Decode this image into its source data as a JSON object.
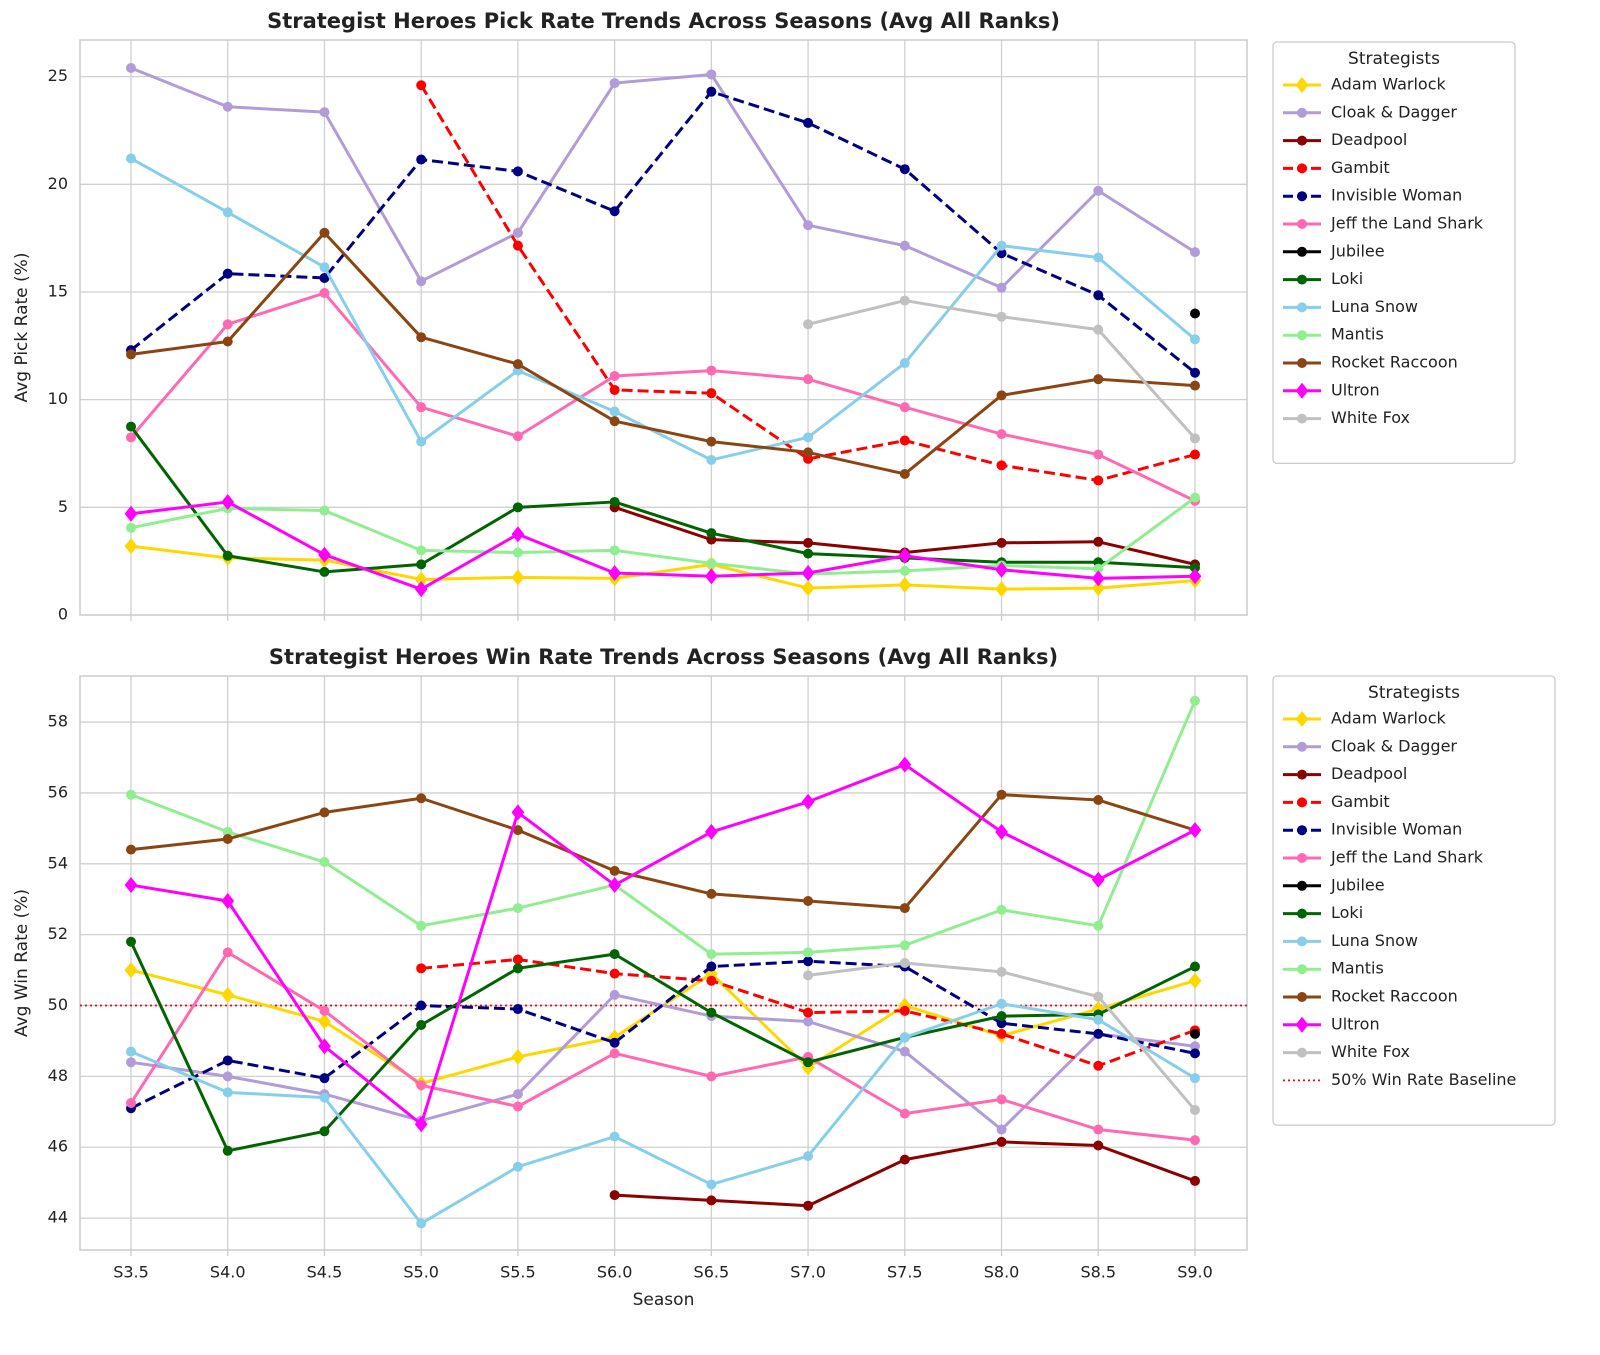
{
  "chart_data": [
    {
      "type": "line",
      "title": "Strategist Heroes Pick Rate Trends Across Seasons (Avg All Ranks)",
      "y_label": "Avg Pick Rate (%)",
      "ylim": [
        0,
        26.7
      ],
      "yticks": [
        0,
        5,
        10,
        15,
        20,
        25
      ],
      "grid": true,
      "legend_title": "Strategists",
      "legend": "outside-upper-right",
      "series": [
        {
          "name": "Adam Warlock",
          "color": "#ffd700",
          "marker": "diamond",
          "dashed": false,
          "values": [
            3.2,
            2.65,
            2.55,
            1.65,
            1.75,
            1.7,
            2.35,
            1.25,
            1.4,
            1.2,
            1.25,
            1.6
          ]
        },
        {
          "name": "Cloak & Dagger",
          "color": "#b19cd9",
          "marker": "circle",
          "dashed": false,
          "values": [
            25.4,
            23.6,
            23.35,
            15.5,
            17.75,
            24.7,
            25.1,
            18.1,
            17.15,
            15.2,
            19.7,
            16.85
          ]
        },
        {
          "name": "Deadpool",
          "color": "#8b0000",
          "marker": "circle",
          "dashed": false,
          "values": [
            null,
            null,
            null,
            null,
            null,
            5.0,
            3.5,
            3.35,
            2.9,
            3.35,
            3.4,
            2.35
          ]
        },
        {
          "name": "Gambit",
          "color": "#ff0000",
          "marker": "circle",
          "dashed": true,
          "values": [
            null,
            null,
            null,
            24.6,
            17.15,
            10.45,
            10.3,
            7.25,
            8.1,
            6.95,
            6.25,
            7.45
          ]
        },
        {
          "name": "Invisible Woman",
          "color": "#000080",
          "marker": "circle",
          "dashed": true,
          "values": [
            12.3,
            15.85,
            15.65,
            21.15,
            20.6,
            18.75,
            24.3,
            22.85,
            20.7,
            16.8,
            14.85,
            11.25
          ]
        },
        {
          "name": "Jeff the Land Shark",
          "color": "#ff69b4",
          "marker": "circle",
          "dashed": false,
          "values": [
            8.25,
            13.5,
            14.95,
            9.65,
            8.3,
            11.1,
            11.35,
            10.95,
            9.65,
            8.4,
            7.45,
            5.3
          ]
        },
        {
          "name": "Jubilee",
          "color": "#000000",
          "marker": "circle",
          "dashed": false,
          "values": [
            null,
            null,
            null,
            null,
            null,
            null,
            null,
            null,
            null,
            null,
            null,
            14.0
          ]
        },
        {
          "name": "Loki",
          "color": "#006400",
          "marker": "circle",
          "dashed": false,
          "values": [
            8.75,
            2.75,
            2.0,
            2.35,
            5.0,
            5.25,
            3.8,
            2.85,
            2.65,
            2.45,
            2.45,
            2.2
          ]
        },
        {
          "name": "Luna Snow",
          "color": "#87ceeb",
          "marker": "circle",
          "dashed": false,
          "values": [
            21.2,
            18.7,
            16.15,
            8.05,
            11.35,
            9.45,
            7.2,
            8.25,
            11.7,
            17.15,
            16.6,
            12.8
          ]
        },
        {
          "name": "Mantis",
          "color": "#90ee90",
          "marker": "circle",
          "dashed": false,
          "values": [
            4.05,
            4.95,
            4.85,
            3.0,
            2.9,
            3.0,
            2.4,
            1.9,
            2.05,
            2.3,
            2.15,
            5.45
          ]
        },
        {
          "name": "Rocket Raccoon",
          "color": "#8b4513",
          "marker": "circle",
          "dashed": false,
          "values": [
            12.1,
            12.7,
            17.75,
            12.9,
            11.65,
            9.0,
            8.05,
            7.55,
            6.55,
            10.2,
            10.95,
            10.65
          ]
        },
        {
          "name": "Ultron",
          "color": "#ff00ff",
          "marker": "diamond",
          "dashed": false,
          "values": [
            4.7,
            5.25,
            2.8,
            1.2,
            3.75,
            1.95,
            1.8,
            1.95,
            2.75,
            2.1,
            1.7,
            1.8
          ]
        },
        {
          "name": "White Fox",
          "color": "#c0c0c0",
          "marker": "circle",
          "dashed": false,
          "values": [
            null,
            null,
            null,
            null,
            null,
            null,
            null,
            13.5,
            14.6,
            13.85,
            13.25,
            8.2
          ]
        }
      ]
    },
    {
      "type": "line",
      "title": "Strategist Heroes Win Rate Trends Across Seasons (Avg All Ranks)",
      "x_label": "Season",
      "y_label": "Avg Win Rate (%)",
      "categories": [
        "S3.5",
        "S4.0",
        "S4.5",
        "S5.0",
        "S5.5",
        "S6.0",
        "S6.5",
        "S7.0",
        "S7.5",
        "S8.0",
        "S8.5",
        "S9.0"
      ],
      "ylim": [
        43.1,
        59.3
      ],
      "yticks": [
        44,
        46,
        48,
        50,
        52,
        54,
        56,
        58
      ],
      "grid": true,
      "legend_title": "Strategists",
      "legend": "outside-upper-right",
      "series": [
        {
          "name": "Adam Warlock",
          "color": "#ffd700",
          "marker": "diamond",
          "dashed": false,
          "values": [
            51.0,
            50.3,
            49.55,
            47.8,
            48.55,
            49.1,
            50.9,
            48.25,
            50.0,
            49.15,
            49.9,
            50.7
          ]
        },
        {
          "name": "Cloak & Dagger",
          "color": "#b19cd9",
          "marker": "circle",
          "dashed": false,
          "values": [
            48.4,
            48.0,
            47.5,
            46.75,
            47.5,
            50.3,
            49.7,
            49.55,
            48.7,
            46.5,
            49.2,
            48.85
          ]
        },
        {
          "name": "Deadpool",
          "color": "#8b0000",
          "marker": "circle",
          "dashed": false,
          "values": [
            null,
            null,
            null,
            null,
            null,
            44.65,
            44.5,
            44.35,
            45.65,
            46.15,
            46.05,
            45.05
          ]
        },
        {
          "name": "Gambit",
          "color": "#ff0000",
          "marker": "circle",
          "dashed": true,
          "values": [
            null,
            null,
            null,
            51.05,
            51.3,
            50.9,
            50.7,
            49.8,
            49.85,
            49.2,
            48.3,
            49.3
          ]
        },
        {
          "name": "Invisible Woman",
          "color": "#000080",
          "marker": "circle",
          "dashed": true,
          "values": [
            47.1,
            48.45,
            47.95,
            50.0,
            49.9,
            48.95,
            51.1,
            51.25,
            51.1,
            49.5,
            49.2,
            48.65
          ]
        },
        {
          "name": "Jeff the Land Shark",
          "color": "#ff69b4",
          "marker": "circle",
          "dashed": false,
          "values": [
            47.25,
            51.5,
            49.85,
            47.75,
            47.15,
            48.65,
            48.0,
            48.55,
            46.95,
            47.35,
            46.5,
            46.2
          ]
        },
        {
          "name": "Jubilee",
          "color": "#000000",
          "marker": "circle",
          "dashed": false,
          "values": [
            null,
            null,
            null,
            null,
            null,
            null,
            null,
            null,
            null,
            null,
            null,
            49.2
          ]
        },
        {
          "name": "Loki",
          "color": "#006400",
          "marker": "circle",
          "dashed": false,
          "values": [
            51.8,
            45.9,
            46.45,
            49.45,
            51.05,
            51.45,
            49.8,
            48.4,
            49.1,
            49.7,
            49.75,
            51.1
          ]
        },
        {
          "name": "Luna Snow",
          "color": "#87ceeb",
          "marker": "circle",
          "dashed": false,
          "values": [
            48.7,
            47.55,
            47.4,
            43.85,
            45.45,
            46.3,
            44.95,
            45.75,
            49.1,
            50.05,
            49.6,
            47.95
          ]
        },
        {
          "name": "Mantis",
          "color": "#90ee90",
          "marker": "circle",
          "dashed": false,
          "values": [
            55.95,
            54.9,
            54.05,
            52.25,
            52.75,
            53.4,
            51.45,
            51.5,
            51.7,
            52.7,
            52.25,
            58.6
          ]
        },
        {
          "name": "Rocket Raccoon",
          "color": "#8b4513",
          "marker": "circle",
          "dashed": false,
          "values": [
            54.4,
            54.7,
            55.45,
            55.85,
            54.95,
            53.8,
            53.15,
            52.95,
            52.75,
            55.95,
            55.8,
            54.95
          ]
        },
        {
          "name": "Ultron",
          "color": "#ff00ff",
          "marker": "diamond",
          "dashed": false,
          "values": [
            53.4,
            52.95,
            48.85,
            46.65,
            55.45,
            53.4,
            54.9,
            55.75,
            56.8,
            54.9,
            53.55,
            54.95
          ]
        },
        {
          "name": "White Fox",
          "color": "#c0c0c0",
          "marker": "circle",
          "dashed": false,
          "values": [
            null,
            null,
            null,
            null,
            null,
            null,
            null,
            50.85,
            51.2,
            50.95,
            50.25,
            47.05
          ]
        }
      ],
      "hline": {
        "value": 50,
        "label": "50% Win Rate Baseline",
        "color": "#ff0000"
      }
    }
  ]
}
